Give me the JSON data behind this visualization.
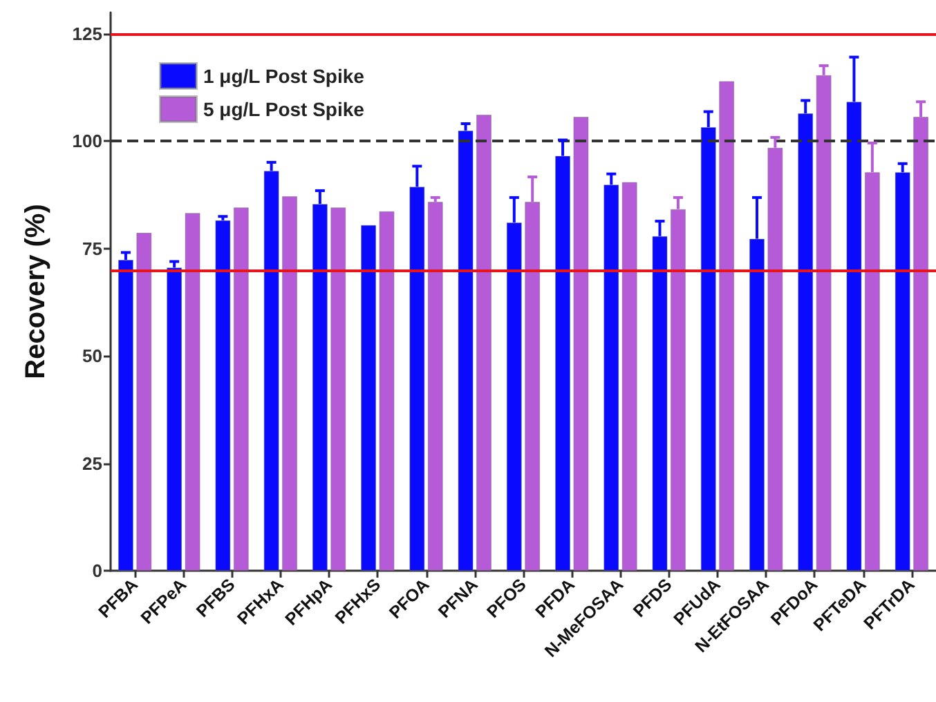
{
  "chart_data": {
    "type": "bar",
    "ylabel": "Recovery (%)",
    "categories": [
      "PFBA",
      "PFPeA",
      "PFBS",
      "PFHxA",
      "PFHpA",
      "PFHxS",
      "PFOA",
      "PFNA",
      "PFOS",
      "PFDA",
      "N-MeFOSAA",
      "PFDS",
      "PFUdA",
      "N-EtFOSAA",
      "PFDoA",
      "PFTeDA",
      "PFTrDA"
    ],
    "series": [
      {
        "name": "1 μg/L Post Spike",
        "color": "#0a0aff",
        "values": [
          72.4,
          70.6,
          81.6,
          93.1,
          85.4,
          80.5,
          89.4,
          102.5,
          81.1,
          96.6,
          89.9,
          77.9,
          103.3,
          77.3,
          106.5,
          109.2,
          92.8
        ],
        "errors": [
          [
            72.4,
            74.1
          ],
          [
            70.6,
            72.0
          ],
          [
            81.6,
            82.5
          ],
          [
            93.1,
            95.1
          ],
          [
            85.4,
            88.5
          ],
          null,
          [
            89.4,
            94.2
          ],
          [
            102.5,
            104.1
          ],
          [
            81.1,
            86.9
          ],
          [
            96.6,
            100.3
          ],
          [
            89.9,
            92.4
          ],
          [
            77.9,
            81.4
          ],
          [
            103.3,
            106.9
          ],
          [
            77.3,
            86.9
          ],
          [
            106.5,
            109.5
          ],
          [
            109.2,
            119.6
          ],
          [
            92.8,
            94.8
          ]
        ]
      },
      {
        "name": "5 μg/L Post Spike",
        "color": "#b65bd8",
        "values": [
          78.7,
          83.3,
          84.6,
          87.2,
          84.6,
          83.7,
          85.9,
          106.2,
          85.9,
          105.7,
          90.5,
          84.2,
          114.0,
          98.5,
          115.4,
          92.8,
          105.7
        ],
        "errors": [
          null,
          null,
          null,
          null,
          null,
          null,
          [
            85.9,
            86.9
          ],
          null,
          [
            85.9,
            91.7
          ],
          null,
          null,
          [
            84.2,
            86.9
          ],
          null,
          [
            98.5,
            100.9
          ],
          [
            115.4,
            117.6
          ],
          [
            92.8,
            99.6
          ],
          [
            105.7,
            109.2
          ]
        ]
      }
    ],
    "ylim": [
      0,
      130
    ],
    "yticks": [
      0,
      25,
      50,
      75,
      100,
      125
    ],
    "grid": false,
    "legend": "top left",
    "ref_lines": [
      {
        "axis": "y",
        "value": 125,
        "color": "#e8141c",
        "line_style": "solid"
      },
      {
        "axis": "y",
        "value": 100,
        "color": "#333333",
        "line_style": "dashed"
      },
      {
        "axis": "y",
        "value": 70,
        "color": "#e8141c",
        "line_style": "solid"
      }
    ]
  }
}
